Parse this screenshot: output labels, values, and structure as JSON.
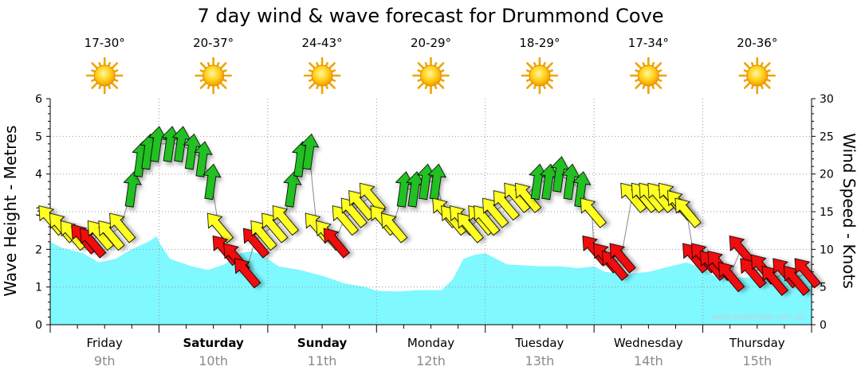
{
  "chart_data": {
    "type": "area",
    "title": "7 day wind & wave forecast for Drummond Cove",
    "ylabel_left": "Wave Height - Metres",
    "ylabel_right": "Wind Speed - Knots",
    "watermark": "www.seabreeze.com.au",
    "ylim_left": [
      0,
      6
    ],
    "ylim_right": [
      0,
      30
    ],
    "yticks_left": [
      "0",
      "1",
      "2",
      "3",
      "4",
      "5",
      "6"
    ],
    "yticks_right": [
      "0",
      "5",
      "10",
      "15",
      "20",
      "25",
      "30"
    ],
    "grid": true,
    "days": [
      {
        "name": "Friday",
        "date": "9th",
        "temp": "17-30°",
        "bold": false,
        "icon": "sun-icon"
      },
      {
        "name": "Saturday",
        "date": "10th",
        "temp": "20-37°",
        "bold": true,
        "icon": "sun-icon"
      },
      {
        "name": "Sunday",
        "date": "11th",
        "temp": "24-43°",
        "bold": true,
        "icon": "sun-icon"
      },
      {
        "name": "Monday",
        "date": "12th",
        "temp": "20-29°",
        "bold": false,
        "icon": "sun-icon"
      },
      {
        "name": "Tuesday",
        "date": "13th",
        "temp": "18-29°",
        "bold": false,
        "icon": "sun-icon"
      },
      {
        "name": "Wednesday",
        "date": "14th",
        "temp": "17-34°",
        "bold": false,
        "icon": "sun-icon"
      },
      {
        "name": "Thursday",
        "date": "15th",
        "temp": "20-36°",
        "bold": false,
        "icon": "sun-icon"
      }
    ],
    "series": [
      {
        "name": "Wave Height - Metres",
        "axis": "left",
        "color": "#80f8ff",
        "x_days": [
          0,
          0.1,
          0.3,
          0.45,
          0.6,
          0.75,
          0.9,
          0.98,
          1.0,
          1.1,
          1.3,
          1.45,
          1.6,
          1.75,
          1.85,
          1.95,
          2.0,
          2.1,
          2.3,
          2.5,
          2.7,
          2.9,
          3.0,
          3.2,
          3.4,
          3.6,
          3.7,
          3.8,
          3.9,
          4.0,
          4.2,
          4.5,
          4.7,
          4.85,
          5.0,
          5.1,
          5.3,
          5.5,
          5.7,
          5.85,
          6.0,
          6.1,
          6.3,
          6.5,
          6.7,
          6.85,
          7.0
        ],
        "values": [
          2.2,
          2.05,
          1.9,
          1.65,
          1.75,
          2.0,
          2.2,
          2.35,
          2.2,
          1.75,
          1.55,
          1.45,
          1.6,
          1.9,
          1.95,
          1.85,
          1.75,
          1.55,
          1.45,
          1.3,
          1.1,
          1.0,
          0.9,
          0.88,
          0.92,
          0.92,
          1.2,
          1.75,
          1.85,
          1.9,
          1.6,
          1.55,
          1.55,
          1.5,
          1.55,
          1.4,
          1.35,
          1.4,
          1.55,
          1.65,
          1.5,
          1.3,
          1.25,
          1.25,
          1.3,
          1.35,
          1.3
        ]
      },
      {
        "name": "Wind Speed - Knots",
        "axis": "right",
        "x_days": [
          0.0,
          0.1,
          0.2,
          0.3,
          0.38,
          0.45,
          0.55,
          0.65,
          0.75,
          0.83,
          0.9,
          0.98,
          1.1,
          1.2,
          1.3,
          1.4,
          1.48,
          1.55,
          1.6,
          1.7,
          1.8,
          1.88,
          1.95,
          2.05,
          2.15,
          2.22,
          2.3,
          2.38,
          2.45,
          2.55,
          2.62,
          2.7,
          2.78,
          2.85,
          2.95,
          3.05,
          3.15,
          3.25,
          3.35,
          3.45,
          3.55,
          3.62,
          3.7,
          3.78,
          3.85,
          3.95,
          4.0,
          4.08,
          4.18,
          4.28,
          4.38,
          4.48,
          4.58,
          4.68,
          4.78,
          4.88,
          4.98,
          5.0,
          5.1,
          5.18,
          5.25,
          5.35,
          5.45,
          5.52,
          5.6,
          5.7,
          5.78,
          5.85,
          5.92,
          6.0,
          6.08,
          6.15,
          6.25,
          6.35,
          6.45,
          6.55,
          6.65,
          6.75,
          6.85,
          6.95
        ],
        "values": [
          14,
          13,
          12,
          11.5,
          11,
          12,
          12,
          13,
          18,
          22,
          23,
          24,
          24,
          24,
          23,
          22,
          19,
          13,
          10,
          9,
          7,
          11,
          12,
          13,
          14,
          18,
          22,
          23,
          13,
          12,
          11,
          14,
          15,
          16,
          17,
          14,
          13,
          18,
          18,
          19,
          19,
          15,
          14,
          14,
          13,
          14,
          14,
          15,
          16,
          17,
          17,
          19,
          19,
          20,
          19,
          18,
          15,
          10,
          9,
          8,
          9,
          17,
          17,
          17,
          17,
          17,
          16,
          15,
          9,
          9,
          8,
          8,
          6.5,
          10,
          7,
          7.5,
          6,
          7,
          6,
          7
        ]
      }
    ]
  }
}
